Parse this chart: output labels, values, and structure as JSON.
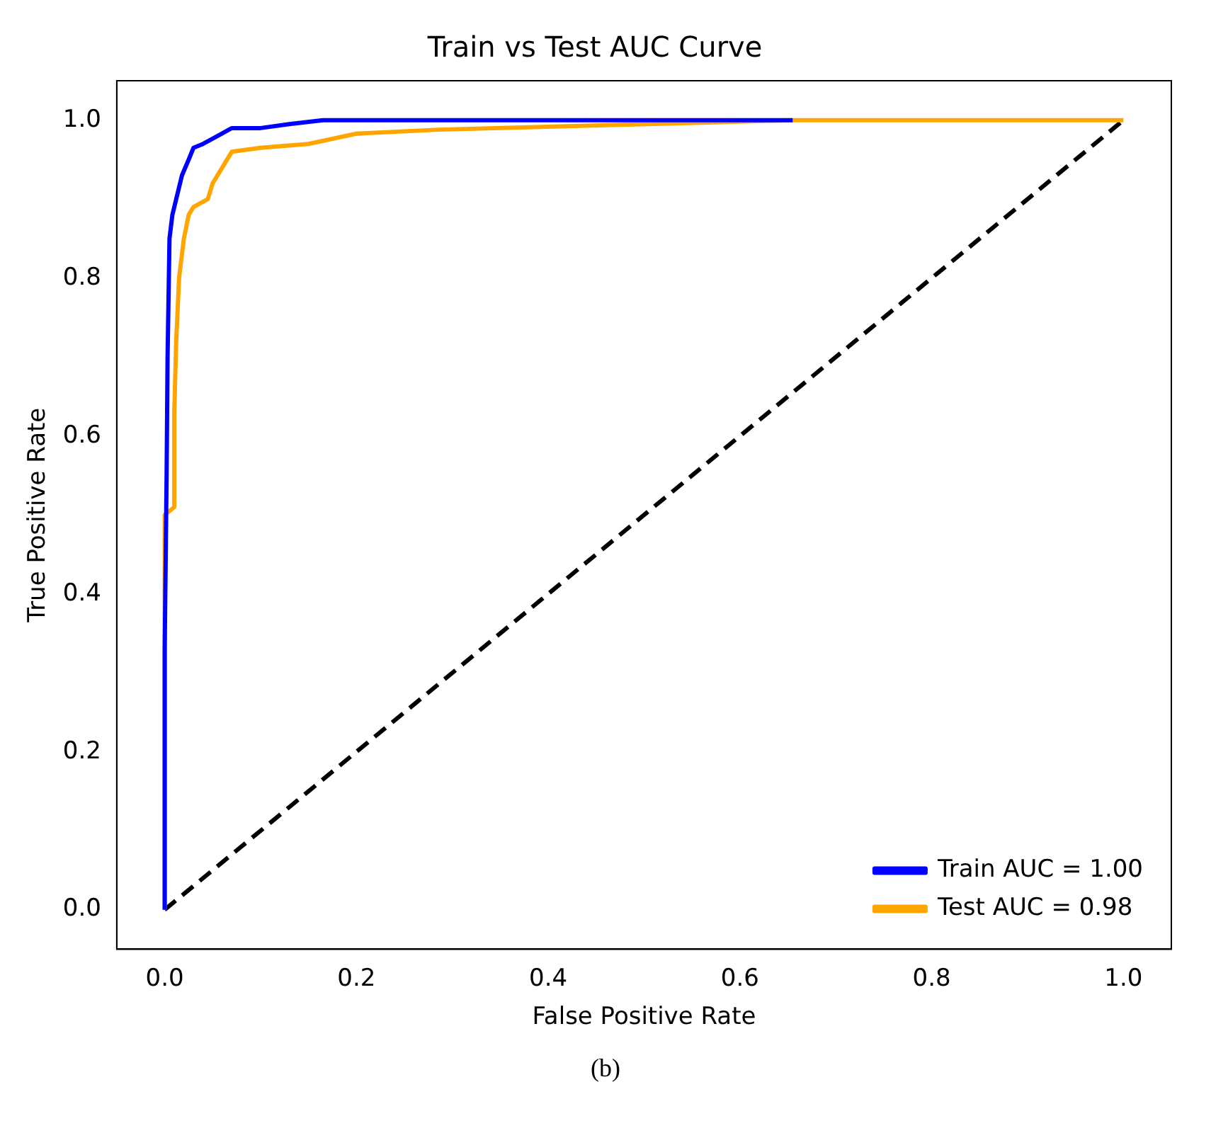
{
  "chart_data": {
    "type": "line",
    "title": "Train vs Test AUC Curve",
    "xlabel": "False Positive Rate",
    "ylabel": "True Positive Rate",
    "xlim": [
      -0.05,
      1.05
    ],
    "ylim": [
      -0.05,
      1.05
    ],
    "xticks": [
      {
        "value": 0,
        "label": "0.0"
      },
      {
        "value": 0.2,
        "label": "0.2"
      },
      {
        "value": 0.4,
        "label": "0.4"
      },
      {
        "value": 0.6,
        "label": "0.6"
      },
      {
        "value": 0.8,
        "label": "0.8"
      },
      {
        "value": 1,
        "label": "1.0"
      }
    ],
    "yticks": [
      {
        "value": 0,
        "label": "0.0"
      },
      {
        "value": 0.2,
        "label": "0.2"
      },
      {
        "value": 0.4,
        "label": "0.4"
      },
      {
        "value": 0.6,
        "label": "0.6"
      },
      {
        "value": 0.8,
        "label": "0.8"
      },
      {
        "value": 1,
        "label": "1.0"
      }
    ],
    "grid": false,
    "legend": "bottom right",
    "marker": "none",
    "series": [
      {
        "name": "Train AUC = 1.00",
        "color": "#0000ff",
        "x": [
          0,
          0,
          0.002,
          0.003,
          0.005,
          0.008,
          0.012,
          0.018,
          0.025,
          0.03,
          0.04,
          0.055,
          0.07,
          0.1,
          0.13,
          0.165,
          0.3,
          0.5,
          0.655
        ],
        "values": [
          0,
          0.33,
          0.55,
          0.7,
          0.85,
          0.88,
          0.9,
          0.93,
          0.95,
          0.965,
          0.97,
          0.98,
          0.99,
          0.99,
          0.995,
          1,
          1,
          1,
          1
        ]
      },
      {
        "name": "Test AUC = 0.98",
        "color": "#ffa500",
        "x": [
          0,
          0,
          0.01,
          0.01,
          0.012,
          0.015,
          0.02,
          0.025,
          0.03,
          0.045,
          0.05,
          0.06,
          0.07,
          0.1,
          0.15,
          0.2,
          0.285,
          0.44,
          0.655,
          1
        ],
        "values": [
          0,
          0.5,
          0.51,
          0.63,
          0.72,
          0.8,
          0.85,
          0.88,
          0.89,
          0.9,
          0.92,
          0.94,
          0.96,
          0.965,
          0.97,
          0.983,
          0.988,
          0.993,
          1,
          1
        ]
      },
      {
        "color": "#000000",
        "x": [
          0,
          1
        ],
        "values": [
          0,
          1
        ],
        "line_style": "dashed"
      }
    ],
    "annotations": [
      "(b)"
    ]
  }
}
